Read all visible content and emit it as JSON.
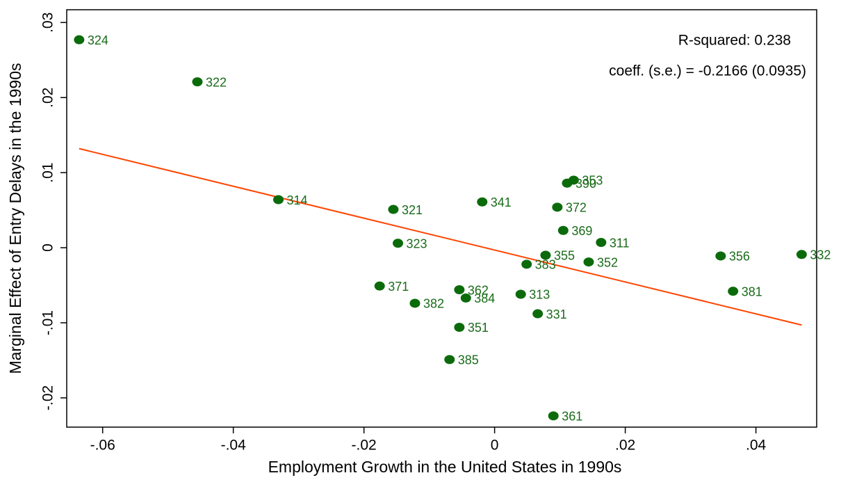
{
  "chart_data": {
    "type": "scatter",
    "x_label": "Employment Growth in the United States in 1990s",
    "y_label": "Marginal Effect of Entry Delays in the 1990s",
    "annotations": [
      "R-squared: 0.238",
      "coeff. (s.e.) = -0.2166 (0.0935)"
    ],
    "color": "#0b6b0b",
    "labels": [
      "324",
      "322",
      "314",
      "321",
      "323",
      "341",
      "353",
      "390",
      "372",
      "369",
      "311",
      "355",
      "383",
      "352",
      "356",
      "332",
      "381",
      "371",
      "362",
      "384",
      "382",
      "313",
      "331",
      "351",
      "385",
      "361"
    ],
    "x": [
      -0.0636,
      -0.0455,
      -0.0331,
      -0.0155,
      -0.0148,
      -0.0019,
      0.0121,
      0.0111,
      0.0096,
      0.0105,
      0.0163,
      0.0078,
      0.0049,
      0.0144,
      0.0346,
      0.047,
      0.0365,
      -0.0176,
      -0.0054,
      -0.0044,
      -0.0122,
      0.004,
      0.0066,
      -0.0054,
      -0.0069,
      0.009
    ],
    "y": [
      0.0277,
      0.0221,
      0.0064,
      0.0051,
      0.0006,
      0.0061,
      0.009,
      0.0086,
      0.0054,
      0.0023,
      0.0007,
      -0.001,
      -0.0022,
      -0.0019,
      -0.0011,
      -0.0009,
      -0.0058,
      -0.0051,
      -0.0056,
      -0.0067,
      -0.0074,
      -0.0062,
      -0.0088,
      -0.0106,
      -0.0149,
      -0.0224
    ],
    "fit": {
      "x": [
        -0.0636,
        0.047
      ],
      "y": [
        0.0132,
        -0.0103
      ],
      "color": "#ff4500"
    },
    "xlim": [
      -0.0655,
      0.0493
    ],
    "ylim": [
      -0.0239,
      0.0317
    ],
    "xticks": [
      {
        "value": -0.06,
        "label": "-.06"
      },
      {
        "value": -0.04,
        "label": "-.04"
      },
      {
        "value": -0.02,
        "label": "-.02"
      },
      0,
      {
        "value": 0.02,
        "label": ".02"
      },
      {
        "value": 0.04,
        "label": ".04"
      }
    ],
    "yticks": [
      {
        "value": -0.02,
        "label": "-.02"
      },
      {
        "value": -0.01,
        "label": "-.01"
      },
      0,
      {
        "value": 0.01,
        "label": ".01"
      },
      {
        "value": 0.02,
        "label": ".02"
      },
      {
        "value": 0.03,
        "label": ".03"
      }
    ]
  }
}
